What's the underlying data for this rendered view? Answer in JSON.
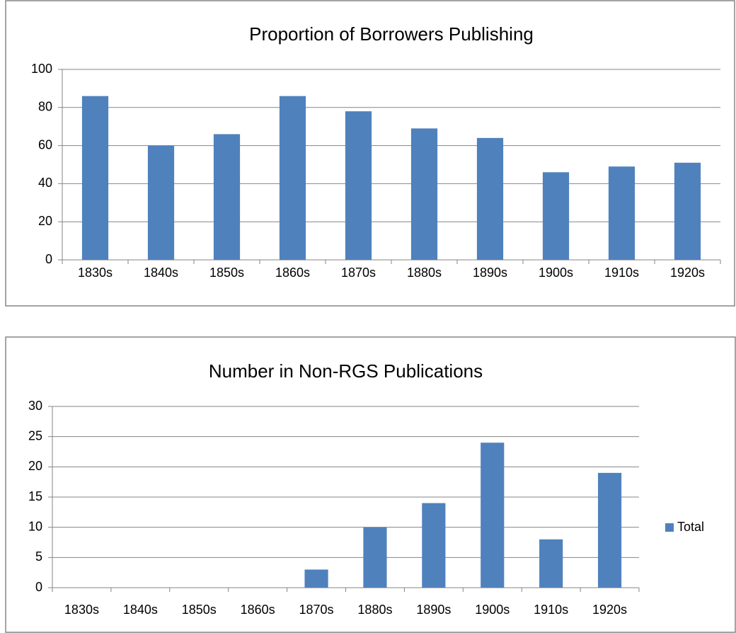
{
  "chart_data": [
    {
      "type": "bar",
      "title": "Proportion of Borrowers Publishing",
      "categories": [
        "1830s",
        "1840s",
        "1850s",
        "1860s",
        "1870s",
        "1880s",
        "1890s",
        "1900s",
        "1910s",
        "1920s"
      ],
      "values": [
        86,
        60,
        66,
        86,
        78,
        69,
        64,
        46,
        49,
        51
      ],
      "color": "#4f81bd",
      "ylim": [
        0,
        100
      ],
      "yticks": [
        0,
        20,
        40,
        60,
        80,
        100
      ],
      "grid": true
    },
    {
      "type": "bar",
      "title": "Number in Non-RGS Publications",
      "categories": [
        "1830s",
        "1840s",
        "1850s",
        "1860s",
        "1870s",
        "1880s",
        "1890s",
        "1900s",
        "1910s",
        "1920s"
      ],
      "series": [
        {
          "name": "Total",
          "color": "#4f81bd",
          "values": [
            0,
            0,
            0,
            0,
            3,
            10,
            14,
            24,
            8,
            19
          ]
        }
      ],
      "ylim": [
        0,
        30
      ],
      "yticks": [
        0,
        5,
        10,
        15,
        20,
        25,
        30
      ],
      "grid": true,
      "legend": "right"
    }
  ]
}
